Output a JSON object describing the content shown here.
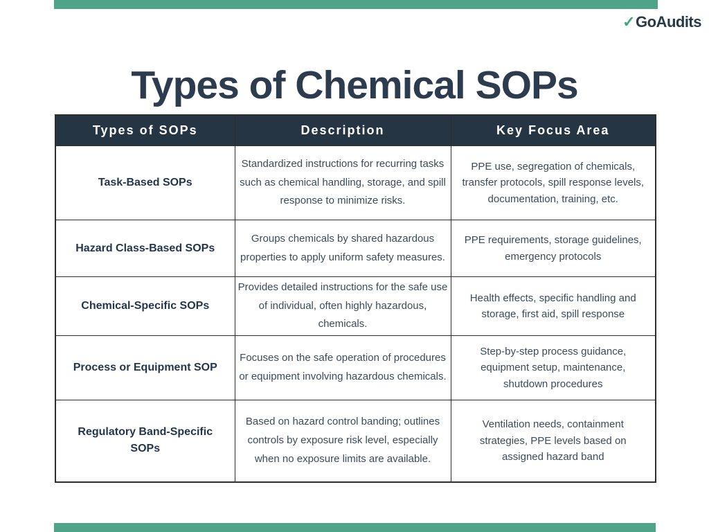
{
  "brand": {
    "check": "✓",
    "logo_text": "GoAudits",
    "accent_green": "#4DA488",
    "check_green": "#3FA580",
    "navy": "#253544"
  },
  "page": {
    "title": "Types of Chemical SOPs",
    "title_color": "#2C3B4E",
    "body_text_color": "#3C4A5A"
  },
  "table": {
    "headers": [
      "Types of SOPs",
      "Description",
      "Key Focus Area"
    ],
    "rows": [
      {
        "type": "Task-Based SOPs",
        "description": "Standardized instructions for recurring tasks such as chemical handling, storage, and spill response to minimize risks.",
        "focus": "PPE use, segregation of chemicals, transfer protocols, spill response levels, documentation, training, etc."
      },
      {
        "type": "Hazard Class-Based SOPs",
        "description": "Groups chemicals by shared hazardous properties to apply uniform safety measures.",
        "focus": "PPE requirements, storage guidelines, emergency protocols"
      },
      {
        "type": "Chemical-Specific SOPs",
        "description": "Provides detailed instructions for the safe use of individual, often highly hazardous, chemicals.",
        "focus": "Health effects, specific handling and storage, first aid, spill response"
      },
      {
        "type": "Process or Equipment SOP",
        "description": "Focuses on the safe operation of procedures or equipment involving hazardous chemicals.",
        "focus": "Step-by-step process guidance, equipment setup, maintenance, shutdown procedures"
      },
      {
        "type": "Regulatory Band-Specific SOPs",
        "description": "Based on hazard control banding; outlines controls by exposure risk level, especially when no exposure limits are available.",
        "focus": "Ventilation needs, containment strategies, PPE levels based on assigned hazard band"
      }
    ]
  }
}
